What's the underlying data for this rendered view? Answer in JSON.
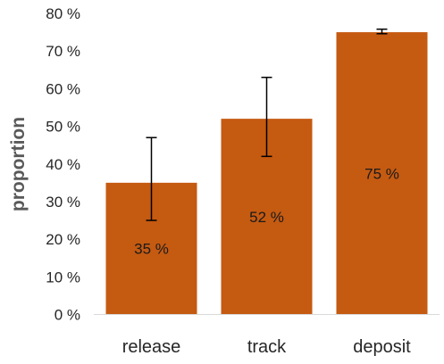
{
  "chart_data": {
    "type": "bar",
    "categories": [
      "release",
      "track",
      "deposit"
    ],
    "values": [
      35,
      52,
      75
    ],
    "error_low": [
      25,
      42,
      74.6
    ],
    "error_high": [
      47,
      63,
      75.8
    ],
    "data_labels": [
      "35 %",
      "52 %",
      "75 %"
    ],
    "ylabel": "proportion",
    "xlabel": "",
    "ylim": [
      0,
      80
    ],
    "yticks": [
      0,
      10,
      20,
      30,
      40,
      50,
      60,
      70,
      80
    ],
    "ytick_labels": [
      "0 %",
      "10 %",
      "20 %",
      "30 %",
      "40 %",
      "50 %",
      "60 %",
      "70 %",
      "80 %"
    ],
    "grid": false,
    "bar_color": "#C55A11",
    "error_bar_color": "#000000"
  }
}
